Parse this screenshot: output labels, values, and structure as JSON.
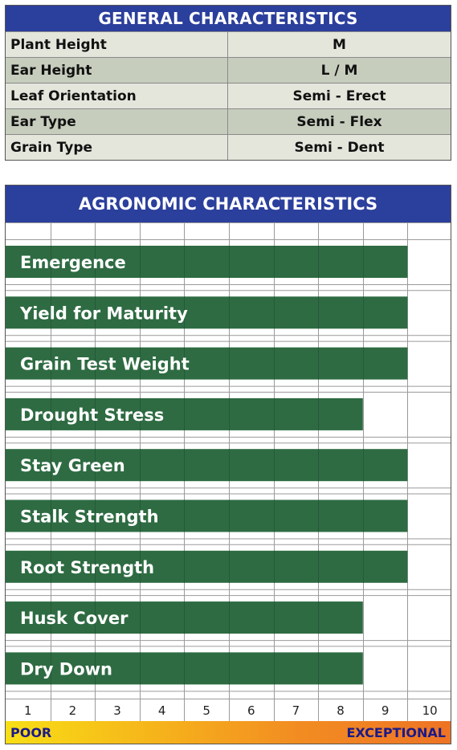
{
  "general": {
    "title": "GENERAL CHARACTERISTICS",
    "rows": [
      {
        "label": "Plant Height",
        "value": "M"
      },
      {
        "label": "Ear Height",
        "value": "L / M"
      },
      {
        "label": "Leaf Orientation",
        "value": "Semi - Erect"
      },
      {
        "label": "Ear Type",
        "value": "Semi - Flex"
      },
      {
        "label": "Grain Type",
        "value": "Semi - Dent"
      }
    ]
  },
  "agronomic": {
    "title": "AGRONOMIC CHARACTERISTICS",
    "scale_low": "POOR",
    "scale_high": "EXCEPTIONAL"
  },
  "colors": {
    "header_blue": "#2b3f9c",
    "bar_green": "#2e6b42"
  },
  "chart_data": {
    "type": "bar",
    "orientation": "horizontal",
    "categories": [
      "Emergence",
      "Yield for Maturity",
      "Grain Test Weight",
      "Drought Stress",
      "Stay Green",
      "Stalk Strength",
      "Root Strength",
      "Husk Cover",
      "Dry Down"
    ],
    "values": [
      9,
      9,
      9,
      8,
      9,
      9,
      9,
      8,
      8
    ],
    "x_ticks": [
      "1",
      "2",
      "3",
      "4",
      "5",
      "6",
      "7",
      "8",
      "9",
      "10"
    ],
    "xlim": [
      0,
      10
    ],
    "grid": true
  }
}
